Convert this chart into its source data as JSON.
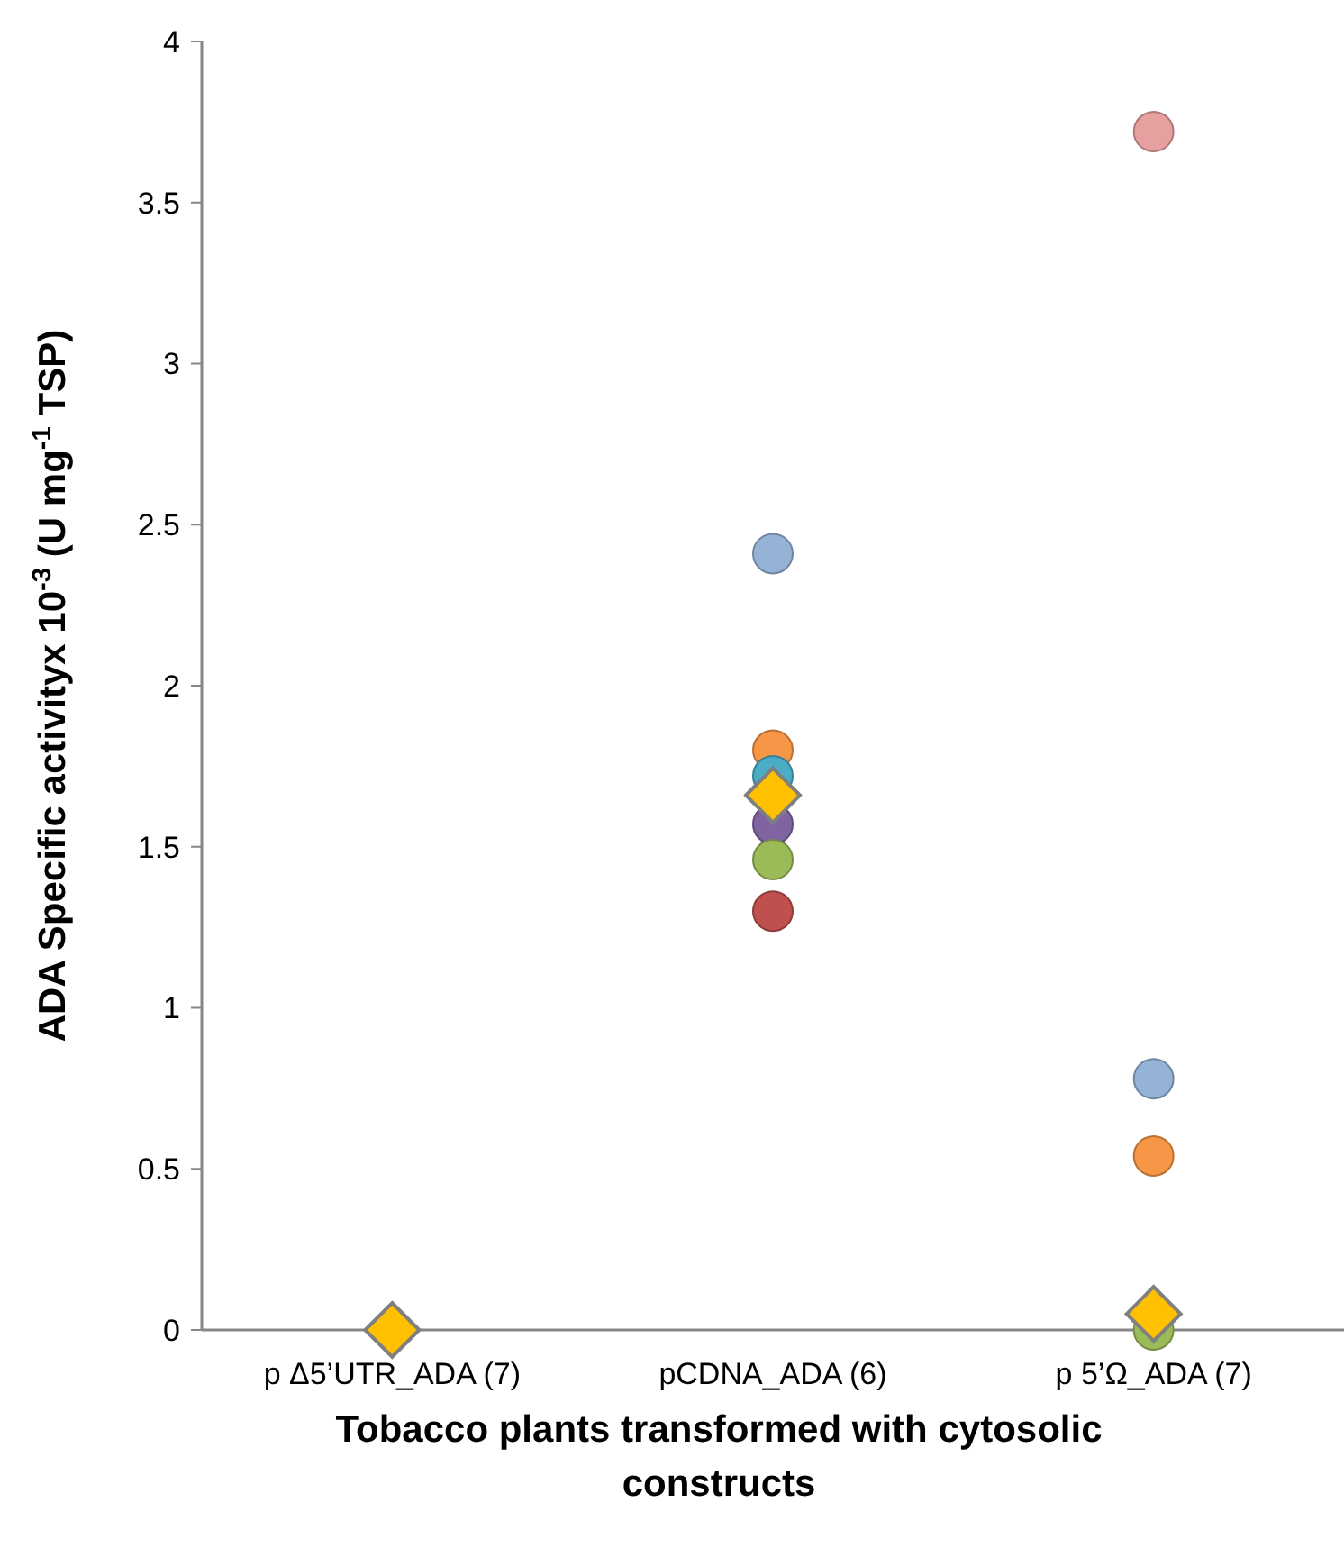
{
  "chart_data": {
    "type": "scatter",
    "xlabel": "Tobacco plants transformed with cytosolic constructs",
    "ylabel": "ADA Specific activityx 10$^{-3}$ (U mg$^{-1}$ TSP)",
    "categories": [
      "p Δ5’UTR_ADA (7)",
      "pCDNA_ADA (6)",
      "p 5’Ω_ADA (7)"
    ],
    "ylim": [
      0,
      4
    ],
    "yticks": [
      0,
      0.5,
      1,
      1.5,
      2,
      2.5,
      3,
      3.5,
      4
    ],
    "grid": false,
    "marker": "circle",
    "series": [
      {
        "color": "#95b3d7",
        "values": [
          null,
          2.41,
          0.78
        ]
      },
      {
        "color": "#f79646",
        "values": [
          null,
          1.8,
          0.54
        ]
      },
      {
        "color": "#4bacc6",
        "values": [
          null,
          1.72,
          null
        ]
      },
      {
        "color": "#8064a2",
        "values": [
          null,
          1.57,
          null
        ]
      },
      {
        "color": "#9bbb59",
        "values": [
          null,
          1.46,
          0
        ]
      },
      {
        "color": "#c0504d",
        "values": [
          null,
          1.3,
          null
        ]
      },
      {
        "color": "#e6a0a0",
        "values": [
          null,
          null,
          3.72
        ]
      },
      {
        "color": "#ffc000",
        "marker": "diamond",
        "values": [
          0,
          1.66,
          0.05
        ]
      }
    ]
  }
}
